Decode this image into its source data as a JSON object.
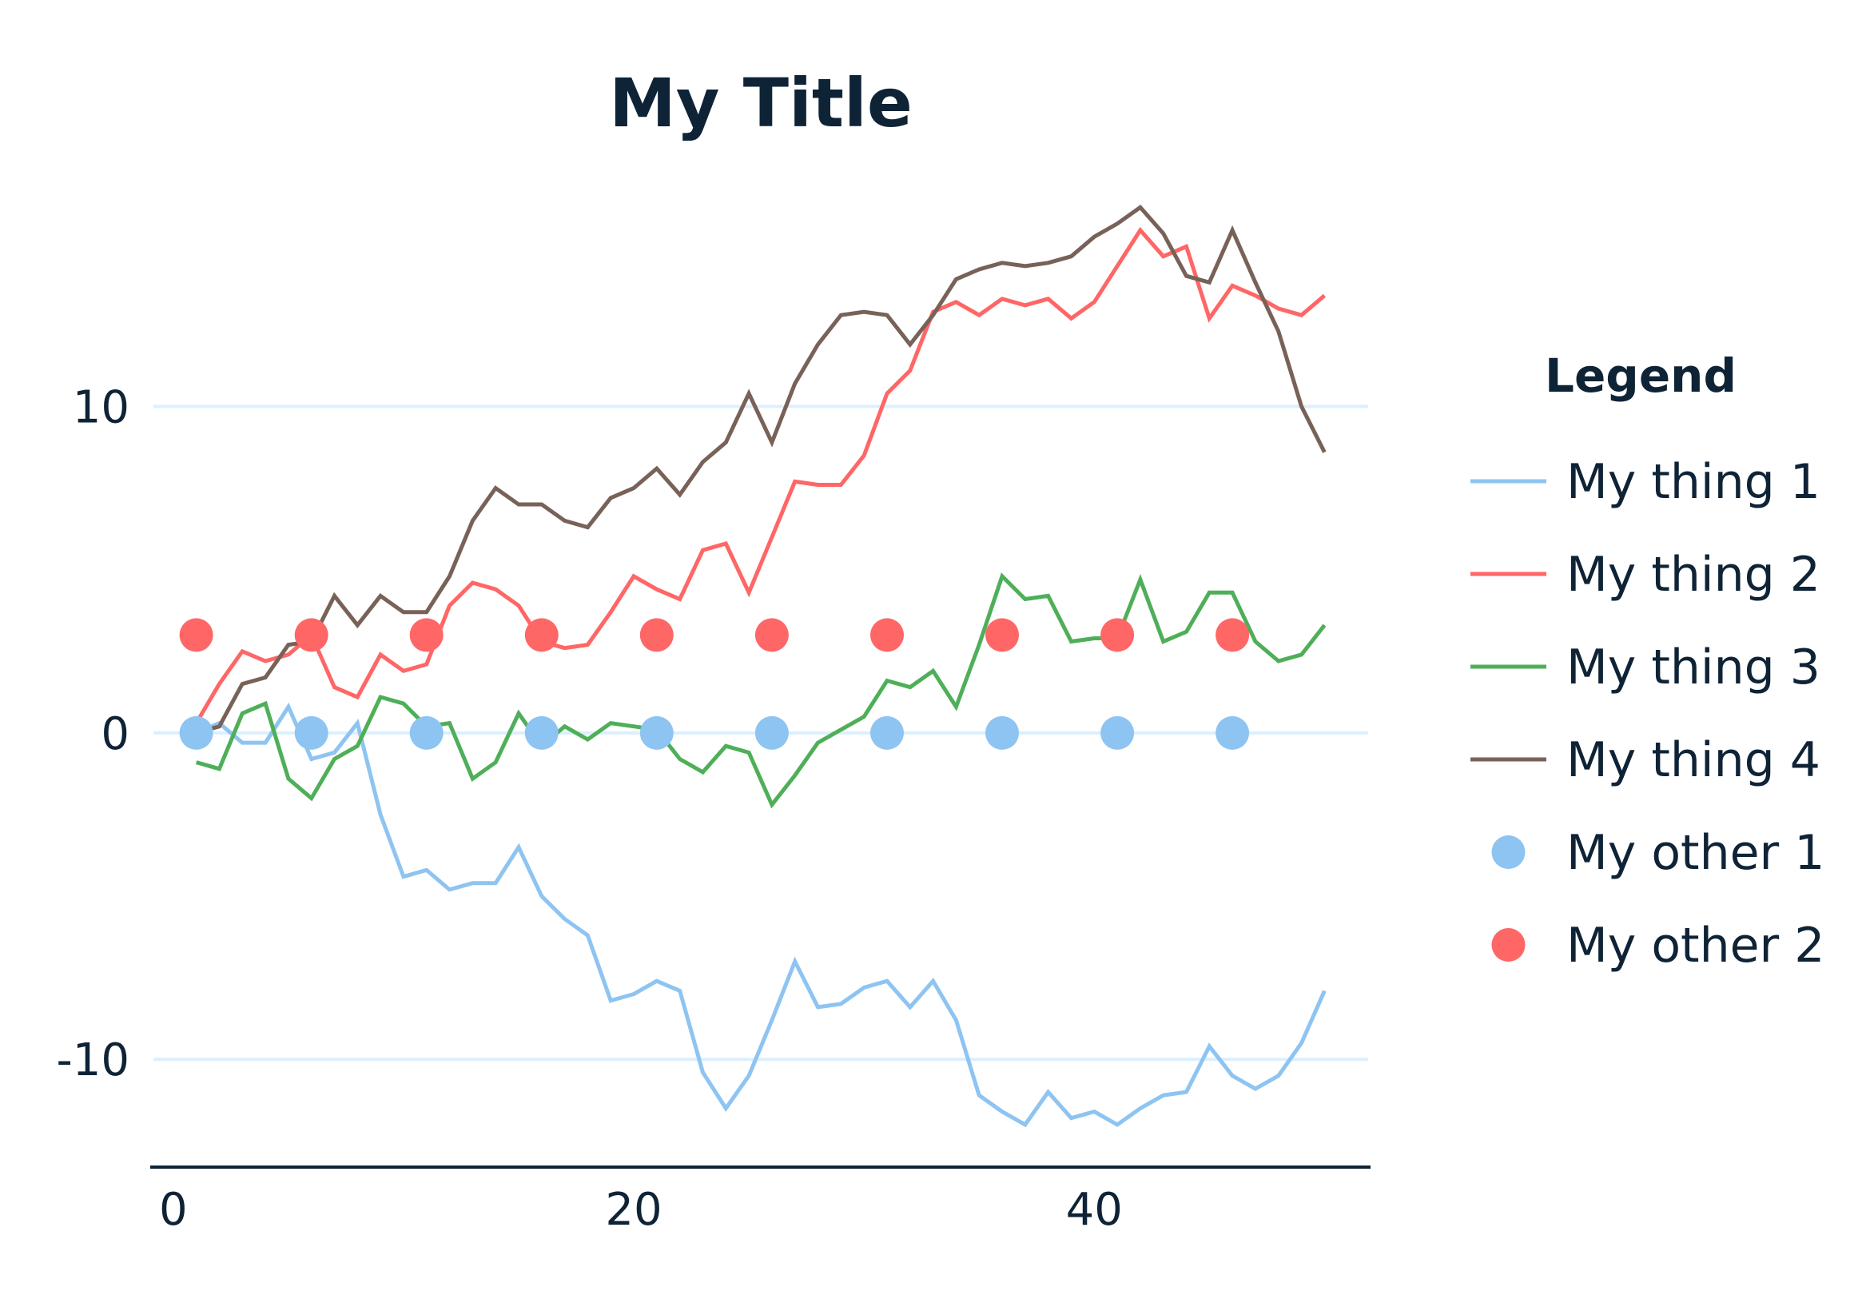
{
  "chart_data": {
    "type": "line",
    "title": "My Title",
    "xlabel": "",
    "ylabel": "",
    "xlim": [
      -1,
      52
    ],
    "ylim": [
      -13.3,
      17.8
    ],
    "xticks": [
      0,
      20,
      40
    ],
    "xtick_labels": [
      "0",
      "20",
      "40"
    ],
    "yticks": [
      10,
      0,
      -10
    ],
    "ytick_labels": [
      "10",
      "0",
      "-10"
    ],
    "grid": "horizontal",
    "legend": {
      "title": "Legend",
      "placement": "right"
    },
    "x": [
      1,
      2,
      3,
      4,
      5,
      6,
      7,
      8,
      9,
      10,
      11,
      12,
      13,
      14,
      15,
      16,
      17,
      18,
      19,
      20,
      21,
      22,
      23,
      24,
      25,
      26,
      27,
      28,
      29,
      30,
      31,
      32,
      33,
      34,
      35,
      36,
      37,
      38,
      39,
      40,
      41,
      42,
      43,
      44,
      45,
      46,
      47,
      48,
      49,
      50
    ],
    "series": [
      {
        "name": "My thing 1",
        "kind": "line",
        "color": "#8ec4f1",
        "values": [
          0.0,
          0.3,
          -0.3,
          -0.3,
          0.8,
          -0.8,
          -0.6,
          0.3,
          -2.5,
          -4.4,
          -4.2,
          -4.8,
          -4.6,
          -4.6,
          -3.5,
          -5.0,
          -5.7,
          -6.2,
          -8.2,
          -8.0,
          -7.6,
          -7.9,
          -10.4,
          -11.5,
          -10.5,
          -8.8,
          -7.0,
          -8.4,
          -8.3,
          -7.8,
          -7.6,
          -8.4,
          -7.6,
          -8.8,
          -11.1,
          -11.6,
          -12.0,
          -11.0,
          -11.8,
          -11.6,
          -12.0,
          -11.5,
          -11.1,
          -11.0,
          -9.6,
          -10.5,
          -10.9,
          -10.5,
          -9.5,
          -7.9
        ]
      },
      {
        "name": "My thing 2",
        "kind": "line",
        "color": "#ff6666",
        "values": [
          0.3,
          1.5,
          2.5,
          2.2,
          2.4,
          3.0,
          1.4,
          1.1,
          2.4,
          1.9,
          2.1,
          3.9,
          4.6,
          4.4,
          3.9,
          2.8,
          2.6,
          2.7,
          3.7,
          4.8,
          4.4,
          4.1,
          5.6,
          5.8,
          4.3,
          6.0,
          7.7,
          7.6,
          7.6,
          8.5,
          10.4,
          11.1,
          12.9,
          13.2,
          12.8,
          13.3,
          13.1,
          13.3,
          12.7,
          13.2,
          14.3,
          15.4,
          14.6,
          14.9,
          12.7,
          13.7,
          13.4,
          13.0,
          12.8,
          13.4
        ]
      },
      {
        "name": "My thing 3",
        "kind": "line",
        "color": "#4faf59",
        "values": [
          -0.9,
          -1.1,
          0.6,
          0.9,
          -1.4,
          -2.0,
          -0.8,
          -0.4,
          1.1,
          0.9,
          0.2,
          0.3,
          -1.4,
          -0.9,
          0.6,
          -0.4,
          0.2,
          -0.2,
          0.3,
          0.2,
          0.1,
          -0.8,
          -1.2,
          -0.4,
          -0.6,
          -2.2,
          -1.3,
          -0.3,
          0.1,
          0.5,
          1.6,
          1.4,
          1.9,
          0.8,
          2.7,
          4.8,
          4.1,
          4.2,
          2.8,
          2.9,
          2.9,
          4.7,
          2.8,
          3.1,
          4.3,
          4.3,
          2.8,
          2.2,
          2.4,
          3.3
        ]
      },
      {
        "name": "My thing 4",
        "kind": "line",
        "color": "#786258",
        "values": [
          0.0,
          0.2,
          1.5,
          1.7,
          2.7,
          2.8,
          4.2,
          3.3,
          4.2,
          3.7,
          3.7,
          4.8,
          6.5,
          7.5,
          7.0,
          7.0,
          6.5,
          6.3,
          7.2,
          7.5,
          8.1,
          7.3,
          8.3,
          8.9,
          10.4,
          8.9,
          10.7,
          11.9,
          12.8,
          12.9,
          12.8,
          11.9,
          12.8,
          13.9,
          14.2,
          14.4,
          14.3,
          14.4,
          14.6,
          15.2,
          15.6,
          16.1,
          15.3,
          14.0,
          13.8,
          15.4,
          13.8,
          12.3,
          10.0,
          8.6
        ]
      },
      {
        "name": "My other 1",
        "kind": "scatter",
        "color": "#8ec4f1",
        "x": [
          1,
          6,
          11,
          16,
          21,
          26,
          31,
          36,
          41,
          46
        ],
        "values": [
          0,
          0,
          0,
          0,
          0,
          0,
          0,
          0,
          0,
          0
        ]
      },
      {
        "name": "My other 2",
        "kind": "scatter",
        "color": "#ff6666",
        "x": [
          1,
          6,
          11,
          16,
          21,
          26,
          31,
          36,
          41,
          46
        ],
        "values": [
          3,
          3,
          3,
          3,
          3,
          3,
          3,
          3,
          3,
          3
        ]
      }
    ]
  }
}
